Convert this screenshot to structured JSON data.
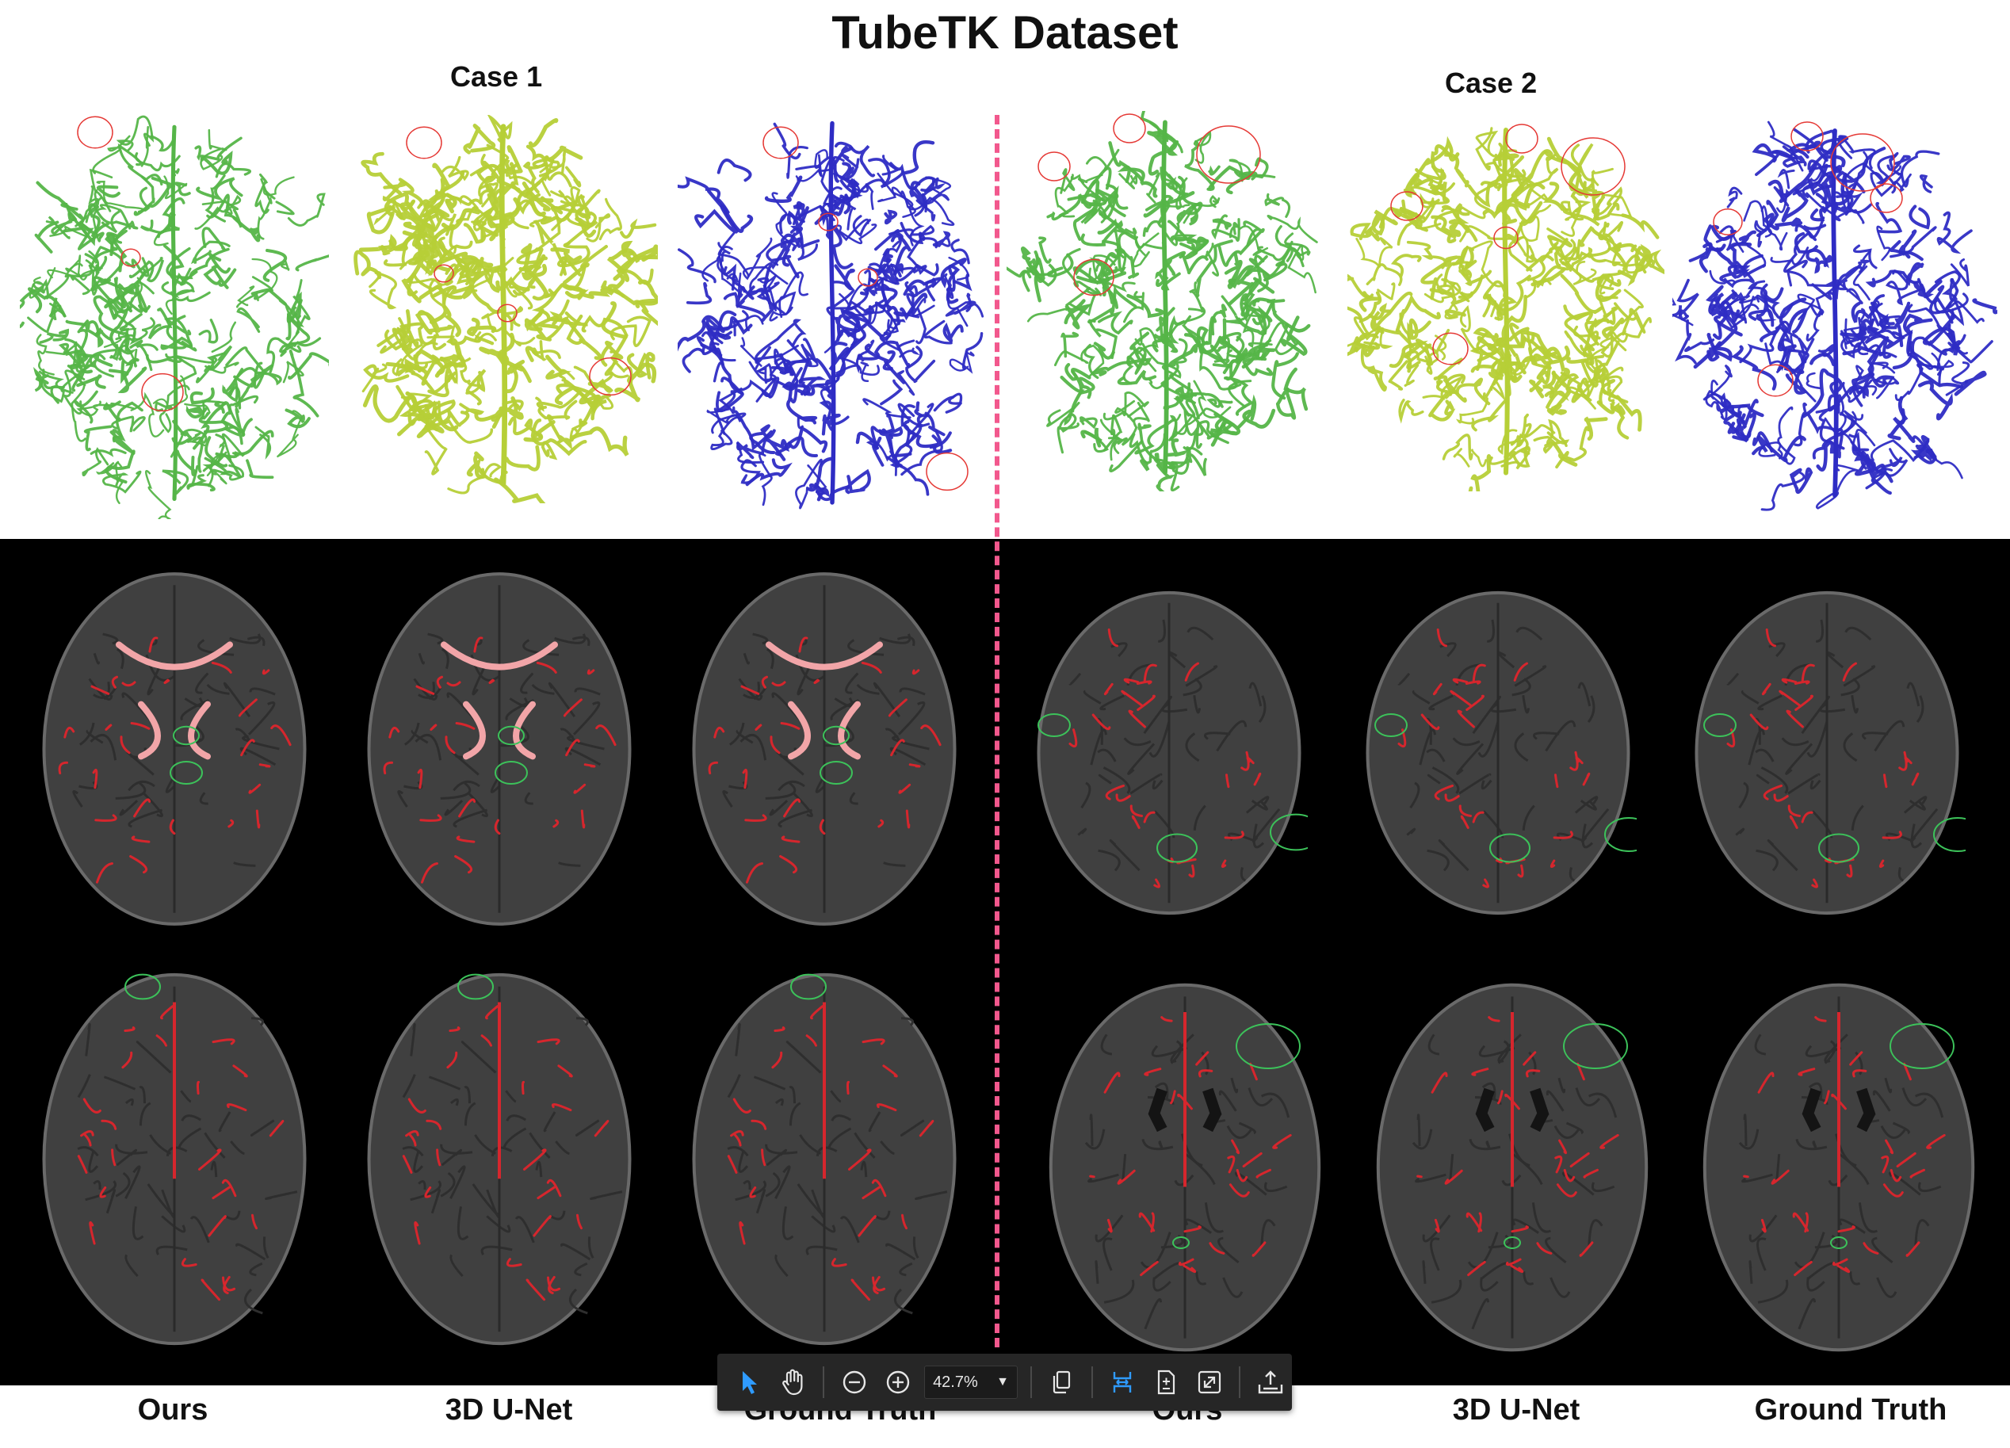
{
  "title": "TubeTK Dataset",
  "cases": [
    {
      "label": "Case 1"
    },
    {
      "label": "Case 2"
    }
  ],
  "column_labels": [
    "Ours",
    "3D U-Net",
    "Ground Truth",
    "Ours",
    "3D U-Net",
    "Ground Truth"
  ],
  "colors": {
    "ours": "#55b548",
    "unet": "#b6cf37",
    "ground_truth": "#2e2cc4",
    "divider": "#f2588d",
    "overlay_vessel": "#d6262d",
    "highlight_red": "#e53935",
    "highlight_green": "#3cc25a"
  },
  "toolbar": {
    "zoom": "42.7%",
    "buttons": [
      {
        "name": "select-tool",
        "icon": "pointer-arrow-icon"
      },
      {
        "name": "pan-tool",
        "icon": "hand-icon"
      },
      {
        "name": "zoom-out",
        "icon": "minus-circle-icon"
      },
      {
        "name": "zoom-in",
        "icon": "plus-circle-icon"
      },
      {
        "name": "page-view",
        "icon": "copy-pages-icon"
      },
      {
        "name": "fit-width",
        "icon": "fit-width-icon"
      },
      {
        "name": "fit-page",
        "icon": "fit-page-icon"
      },
      {
        "name": "fullscreen",
        "icon": "expand-icon"
      },
      {
        "name": "export",
        "icon": "tray-upload-icon"
      }
    ]
  }
}
